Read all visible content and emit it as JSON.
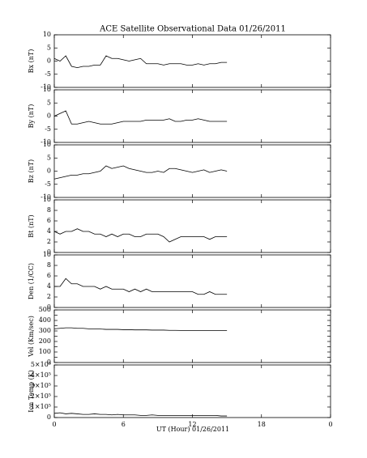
{
  "title": "ACE Satellite Observational Data   01/26/2011",
  "xlabel": "UT (Hour)  01/26/2011",
  "chart_data": [
    {
      "type": "line",
      "ylabel": "Bx (nT)",
      "xlim": [
        0,
        24
      ],
      "ylim": [
        -10,
        10
      ],
      "yticks": [
        -10,
        -5,
        0,
        5,
        10
      ],
      "series": [
        {
          "color": "#000000",
          "x": [
            0,
            0.5,
            1,
            1.5,
            2,
            2.5,
            3,
            3.5,
            4,
            4.5,
            5,
            5.5,
            6,
            6.5,
            7,
            7.5,
            8,
            8.5,
            9,
            9.5,
            10,
            10.5,
            11,
            11.5,
            12,
            12.5,
            13,
            13.5,
            14,
            14.5,
            15
          ],
          "values": [
            1,
            0,
            2,
            -2,
            -2.5,
            -2,
            -2,
            -1.5,
            -1.5,
            2,
            1,
            1,
            0.5,
            0,
            0.5,
            1,
            -1,
            -1,
            -1,
            -1.5,
            -1,
            -1,
            -1,
            -1.5,
            -1.5,
            -1,
            -1.5,
            -1,
            -1,
            -0.5,
            -0.5
          ]
        }
      ]
    },
    {
      "type": "line",
      "ylabel": "By (nT)",
      "xlim": [
        0,
        24
      ],
      "ylim": [
        -10,
        10
      ],
      "yticks": [
        -10,
        -5,
        0,
        5,
        10
      ],
      "series": [
        {
          "color": "#000000",
          "x": [
            0,
            0.5,
            1,
            1.5,
            2,
            2.5,
            3,
            3.5,
            4,
            4.5,
            5,
            5.5,
            6,
            6.5,
            7,
            7.5,
            8,
            8.5,
            9,
            9.5,
            10,
            10.5,
            11,
            11.5,
            12,
            12.5,
            13,
            13.5,
            14,
            14.5,
            15
          ],
          "values": [
            0,
            1,
            2,
            -3,
            -3,
            -2.5,
            -2,
            -2.5,
            -3,
            -3,
            -3,
            -2.5,
            -2,
            -2,
            -2,
            -2,
            -1.5,
            -1.5,
            -1.5,
            -1.5,
            -1,
            -2,
            -2,
            -1.5,
            -1.5,
            -1,
            -1.5,
            -2,
            -2,
            -2,
            -2
          ]
        }
      ]
    },
    {
      "type": "line",
      "ylabel": "Bz (nT)",
      "xlim": [
        0,
        24
      ],
      "ylim": [
        -10,
        10
      ],
      "yticks": [
        -10,
        -5,
        0,
        5,
        10
      ],
      "series": [
        {
          "color": "#000000",
          "x": [
            0,
            0.5,
            1,
            1.5,
            2,
            2.5,
            3,
            3.5,
            4,
            4.5,
            5,
            5.5,
            6,
            6.5,
            7,
            7.5,
            8,
            8.5,
            9,
            9.5,
            10,
            10.5,
            11,
            11.5,
            12,
            12.5,
            13,
            13.5,
            14,
            14.5,
            15
          ],
          "values": [
            -3,
            -2.5,
            -2,
            -1.5,
            -1.5,
            -1,
            -1,
            -0.5,
            0,
            2,
            1,
            1.5,
            2,
            1,
            0.5,
            0,
            -0.5,
            -0.5,
            0,
            -0.5,
            1,
            1,
            0.5,
            0,
            -0.5,
            0,
            0.5,
            -0.5,
            0,
            0.5,
            0
          ]
        }
      ]
    },
    {
      "type": "line",
      "ylabel": "Bt (nT)",
      "xlim": [
        0,
        24
      ],
      "ylim": [
        0,
        10
      ],
      "yticks": [
        0,
        2,
        4,
        6,
        8,
        10
      ],
      "series": [
        {
          "color": "#000000",
          "x": [
            0,
            0.5,
            1,
            1.5,
            2,
            2.5,
            3,
            3.5,
            4,
            4.5,
            5,
            5.5,
            6,
            6.5,
            7,
            7.5,
            8,
            8.5,
            9,
            9.5,
            10,
            10.5,
            11,
            11.5,
            12,
            12.5,
            13,
            13.5,
            14,
            14.5,
            15
          ],
          "values": [
            4,
            3.5,
            4,
            4,
            4.5,
            4,
            4,
            3.5,
            3.5,
            3,
            3.5,
            3,
            3.5,
            3.5,
            3,
            3,
            3.5,
            3.5,
            3.5,
            3,
            2,
            2.5,
            3,
            3,
            3,
            3,
            3,
            2.5,
            3,
            3,
            3
          ]
        }
      ]
    },
    {
      "type": "line",
      "ylabel": "Den (1/CC)",
      "xlim": [
        0,
        24
      ],
      "ylim": [
        0,
        10
      ],
      "yticks": [
        0,
        2,
        4,
        6,
        8,
        10
      ],
      "series": [
        {
          "color": "#000000",
          "x": [
            0,
            0.5,
            1,
            1.5,
            2,
            2.5,
            3,
            3.5,
            4,
            4.5,
            5,
            5.5,
            6,
            6.5,
            7,
            7.5,
            8,
            8.5,
            9,
            9.5,
            10,
            10.5,
            11,
            11.5,
            12,
            12.5,
            13,
            13.5,
            14,
            14.5,
            15
          ],
          "values": [
            4,
            4,
            5.5,
            4.5,
            4.5,
            4,
            4,
            4,
            3.5,
            4,
            3.5,
            3.5,
            3.5,
            3,
            3.5,
            3,
            3.5,
            3,
            3,
            3,
            3,
            3,
            3,
            3,
            3,
            2.5,
            2.5,
            3,
            2.5,
            2.5,
            2.5
          ]
        }
      ]
    },
    {
      "type": "line",
      "ylabel": "Vel (Km/sec)",
      "xlim": [
        0,
        24
      ],
      "ylim": [
        0,
        500
      ],
      "yticks": [
        0,
        50,
        100,
        150,
        200,
        250,
        300,
        350,
        400,
        450,
        500
      ],
      "series": [
        {
          "color": "#000000",
          "x": [
            0,
            0.5,
            1,
            1.5,
            2,
            2.5,
            3,
            3.5,
            4,
            4.5,
            5,
            5.5,
            6,
            6.5,
            7,
            7.5,
            8,
            8.5,
            9,
            9.5,
            10,
            10.5,
            11,
            11.5,
            12,
            12.5,
            13,
            13.5,
            14,
            14.5,
            15
          ],
          "values": [
            320,
            325,
            330,
            330,
            325,
            325,
            320,
            320,
            318,
            315,
            315,
            315,
            312,
            312,
            310,
            310,
            310,
            308,
            308,
            308,
            306,
            306,
            305,
            305,
            305,
            305,
            305,
            305,
            305,
            305,
            305
          ]
        }
      ]
    },
    {
      "type": "line",
      "ylabel": "Ion Temp (K)",
      "xlim": [
        0,
        24
      ],
      "ylim": [
        0,
        500000
      ],
      "yticks": [
        0,
        {
          "value": 100000,
          "label": "1×10⁵"
        },
        {
          "value": 200000,
          "label": "2×10⁵"
        },
        {
          "value": 300000,
          "label": "3×10⁵"
        },
        {
          "value": 400000,
          "label": "4×10⁵"
        },
        {
          "value": 500000,
          "label": "5×10⁵"
        }
      ],
      "xticks": [
        0,
        6,
        12,
        18,
        {
          "value": 24,
          "label": "0"
        }
      ],
      "series": [
        {
          "color": "#000000",
          "x": [
            0,
            0.5,
            1,
            1.5,
            2,
            2.5,
            3,
            3.5,
            4,
            4.5,
            5,
            5.5,
            6,
            6.5,
            7,
            7.5,
            8,
            8.5,
            9,
            9.5,
            10,
            10.5,
            11,
            11.5,
            12,
            12.5,
            13,
            13.5,
            14,
            14.5,
            15
          ],
          "values": [
            40000,
            45000,
            35000,
            40000,
            35000,
            30000,
            30000,
            35000,
            30000,
            30000,
            25000,
            30000,
            25000,
            25000,
            25000,
            20000,
            20000,
            25000,
            20000,
            20000,
            20000,
            20000,
            20000,
            20000,
            20000,
            20000,
            20000,
            20000,
            20000,
            15000,
            15000
          ]
        }
      ]
    }
  ]
}
